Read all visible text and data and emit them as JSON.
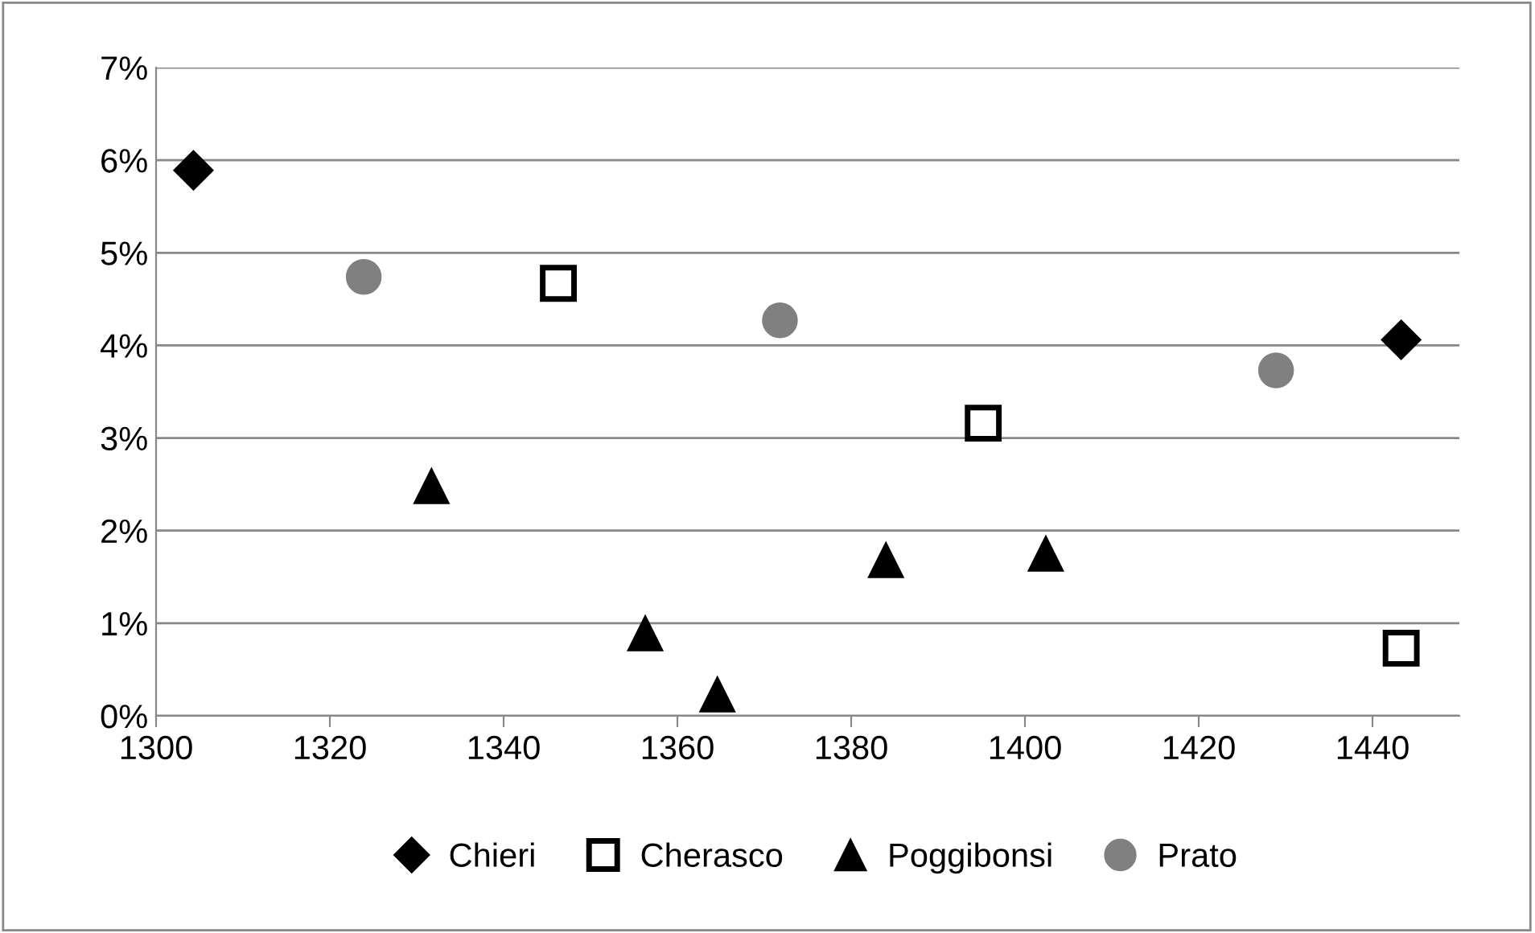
{
  "chart_data": {
    "type": "scatter",
    "series": [
      {
        "name": "Chieri",
        "color": "#000000",
        "marker": "diamond",
        "x": [
          1304.3,
          1443.3
        ],
        "values": [
          5.89,
          4.06
        ]
      },
      {
        "name": "Cherasco",
        "color": "#000000",
        "marker": "square",
        "x": [
          1346.3,
          1395.2,
          1443.3
        ],
        "values": [
          4.67,
          3.16,
          0.73
        ]
      },
      {
        "name": "Poggibonsi",
        "color": "#000000",
        "marker": "triangle",
        "x": [
          1331.7,
          1356.3,
          1364.6,
          1384.0,
          1402.4
        ],
        "values": [
          2.48,
          0.89,
          0.23,
          1.68,
          1.75
        ]
      },
      {
        "name": "Prato",
        "color": "#808080",
        "marker": "circle",
        "x": [
          1323.9,
          1371.8,
          1428.9
        ],
        "values": [
          4.74,
          4.27,
          3.73
        ]
      }
    ],
    "xlim": [
      1300,
      1450
    ],
    "xticks": [
      1300,
      1320,
      1340,
      1360,
      1380,
      1400,
      1420,
      1440
    ],
    "ylim": [
      0,
      7
    ],
    "yticks": [
      {
        "value": 0,
        "label": "0%"
      },
      {
        "value": 1,
        "label": "1%"
      },
      {
        "value": 2,
        "label": "2%"
      },
      {
        "value": 3,
        "label": "3%"
      },
      {
        "value": 4,
        "label": "4%"
      },
      {
        "value": 5,
        "label": "5%"
      },
      {
        "value": 6,
        "label": "6%"
      },
      {
        "value": 7,
        "label": "7%"
      }
    ],
    "grid": "y",
    "legend": "bottom"
  }
}
